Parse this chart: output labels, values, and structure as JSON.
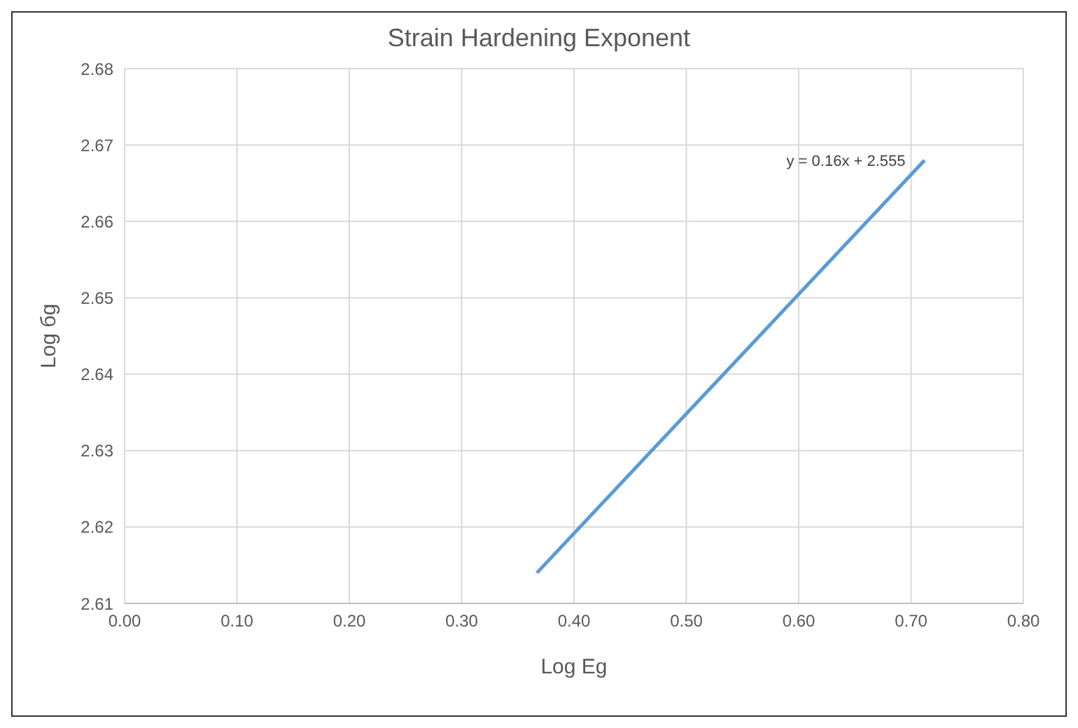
{
  "chart_data": {
    "type": "line",
    "title": "Strain Hardening Exponent",
    "xlabel": "Log Eg",
    "ylabel": "Log бg",
    "annotations": [
      {
        "text": "y = 0.16x + 2.555",
        "x": 0.71,
        "y": 2.668
      }
    ],
    "series": [
      {
        "color": "#5b9bd5",
        "x": [
          0.367,
          0.712
        ],
        "values": [
          2.614,
          2.668
        ]
      }
    ],
    "xlim": [
      0,
      0.8
    ],
    "xticks": [
      {
        "value": 0,
        "label": "0.00"
      },
      {
        "value": 0.1,
        "label": "0.10"
      },
      {
        "value": 0.2,
        "label": "0.20"
      },
      {
        "value": 0.3,
        "label": "0.30"
      },
      {
        "value": 0.4,
        "label": "0.40"
      },
      {
        "value": 0.5,
        "label": "0.50"
      },
      {
        "value": 0.6,
        "label": "0.60"
      },
      {
        "value": 0.7,
        "label": "0.70"
      },
      {
        "value": 0.8,
        "label": "0.80"
      }
    ],
    "ylim": [
      2.61,
      2.68
    ],
    "yticks": [
      2.61,
      2.62,
      2.63,
      2.64,
      2.65,
      2.66,
      2.67,
      2.68
    ],
    "grid": true,
    "marker": "none",
    "line_style": "solid"
  }
}
